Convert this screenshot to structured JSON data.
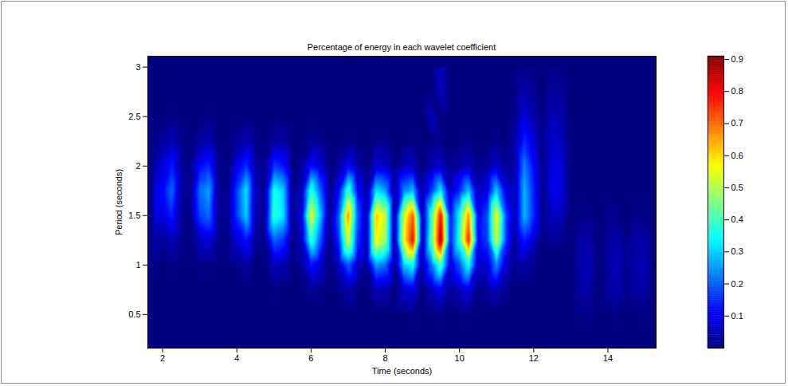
{
  "chart_data": {
    "type": "heatmap",
    "title": "Percentage of energy in each wavelet coefficient",
    "x_label": "Time (seconds)",
    "y_label": "Period (seconds)",
    "xlim": [
      1.6,
      15.3
    ],
    "ylim": [
      0.16,
      3.11
    ],
    "xticks": [
      2,
      4,
      6,
      8,
      10,
      12,
      14
    ],
    "yticks": [
      0.5,
      1,
      1.5,
      2,
      2.5,
      3
    ],
    "x": [
      1.75,
      2,
      2.25,
      2.5,
      2.75,
      3,
      3.25,
      3.5,
      3.75,
      4,
      4.25,
      4.5,
      4.75,
      5,
      5.25,
      5.5,
      5.75,
      6,
      6.25,
      6.5,
      6.75,
      7,
      7.25,
      7.5,
      7.75,
      8,
      8.25,
      8.5,
      8.75,
      9,
      9.25,
      9.5,
      9.75,
      10,
      10.25,
      10.5,
      10.75,
      11,
      11.25,
      11.5,
      11.75,
      12,
      12.25,
      12.5,
      12.75,
      13,
      13.25,
      13.5,
      13.75,
      14,
      14.25,
      14.5,
      14.75,
      15,
      15.25
    ],
    "y": [
      0.25,
      0.5,
      0.75,
      1,
      1.25,
      1.5,
      1.75,
      2,
      2.25,
      2.5,
      2.75,
      3
    ],
    "values": [
      [
        0,
        0,
        0,
        0,
        0,
        0,
        0,
        0,
        0,
        0,
        0,
        0,
        0,
        0,
        0,
        0,
        0,
        0,
        0,
        0,
        0,
        0,
        0,
        0,
        0,
        0,
        0,
        0,
        0,
        0,
        0,
        0,
        0,
        0,
        0,
        0,
        0,
        0,
        0,
        0,
        0,
        0,
        0,
        0,
        0,
        0,
        0,
        0,
        0,
        0,
        0,
        0,
        0,
        0,
        0
      ],
      [
        0,
        0,
        0,
        0,
        0,
        0,
        0,
        0,
        0,
        0,
        0,
        0,
        0,
        0,
        0,
        0,
        0,
        0,
        0,
        0,
        0,
        0,
        0,
        0,
        0,
        0,
        0,
        0,
        0.01,
        0,
        0,
        0.01,
        0,
        0,
        0.01,
        0,
        0,
        0,
        0,
        0,
        0,
        0,
        0,
        0,
        0,
        0,
        0.01,
        0.01,
        0,
        0,
        0.01,
        0,
        0,
        0.01,
        0
      ],
      [
        0,
        0,
        0,
        0,
        0,
        0,
        0,
        0,
        0,
        0,
        0,
        0,
        0,
        0.01,
        0,
        0,
        0,
        0.02,
        0.01,
        0,
        0.01,
        0.04,
        0.01,
        0,
        0.05,
        0.04,
        0,
        0.07,
        0.09,
        0,
        0.05,
        0.1,
        0.02,
        0.05,
        0.09,
        0.01,
        0.02,
        0.05,
        0.02,
        0,
        0,
        0,
        0,
        0,
        0,
        0,
        0.03,
        0.03,
        0,
        0.02,
        0.04,
        0.01,
        0.03,
        0.03,
        0
      ],
      [
        0.01,
        0,
        0.01,
        0,
        0,
        0.01,
        0.01,
        0,
        0,
        0.01,
        0.03,
        0,
        0,
        0.05,
        0.04,
        0,
        0.02,
        0.13,
        0.07,
        0,
        0.06,
        0.2,
        0.06,
        0.02,
        0.25,
        0.21,
        0.01,
        0.29,
        0.35,
        0.02,
        0.22,
        0.41,
        0.07,
        0.19,
        0.36,
        0.06,
        0.07,
        0.24,
        0.07,
        0.01,
        0.03,
        0.02,
        0,
        0,
        0,
        0,
        0.04,
        0.05,
        0,
        0.03,
        0.06,
        0.01,
        0.04,
        0.05,
        0
      ],
      [
        0.05,
        0.02,
        0.05,
        0.01,
        0,
        0.06,
        0.08,
        0.01,
        0,
        0.07,
        0.13,
        0.02,
        0.01,
        0.2,
        0.16,
        0,
        0.06,
        0.39,
        0.2,
        0.01,
        0.16,
        0.54,
        0.16,
        0.04,
        0.58,
        0.48,
        0.03,
        0.56,
        0.8,
        0.04,
        0.42,
        0.88,
        0.13,
        0.38,
        0.78,
        0.11,
        0.17,
        0.54,
        0.17,
        0.02,
        0.14,
        0.07,
        0,
        0.02,
        0.01,
        0,
        0.03,
        0.03,
        0,
        0.02,
        0.04,
        0.01,
        0.03,
        0.03,
        0
      ],
      [
        0.09,
        0.08,
        0.14,
        0.02,
        0.01,
        0.17,
        0.21,
        0.02,
        0.01,
        0.16,
        0.3,
        0.04,
        0.02,
        0.39,
        0.32,
        0.01,
        0.09,
        0.56,
        0.29,
        0.01,
        0.2,
        0.67,
        0.2,
        0.04,
        0.62,
        0.52,
        0.03,
        0.53,
        0.72,
        0.04,
        0.39,
        0.8,
        0.12,
        0.35,
        0.67,
        0.1,
        0.18,
        0.58,
        0.18,
        0.05,
        0.28,
        0.15,
        0.01,
        0.06,
        0.05,
        0,
        0.01,
        0.01,
        0,
        0.01,
        0.01,
        0,
        0.01,
        0.01,
        0
      ],
      [
        0.09,
        0.11,
        0.21,
        0.03,
        0.01,
        0.21,
        0.26,
        0.02,
        0.01,
        0.17,
        0.32,
        0.05,
        0.02,
        0.36,
        0.3,
        0.01,
        0.06,
        0.39,
        0.2,
        0.01,
        0.12,
        0.4,
        0.12,
        0.02,
        0.32,
        0.26,
        0.01,
        0.23,
        0.28,
        0.02,
        0.17,
        0.33,
        0.05,
        0.15,
        0.29,
        0.05,
        0.09,
        0.3,
        0.09,
        0.05,
        0.28,
        0.14,
        0.01,
        0.1,
        0.08,
        0,
        0,
        0,
        0,
        0,
        0,
        0,
        0,
        0,
        0
      ],
      [
        0.04,
        0.08,
        0.14,
        0.02,
        0.01,
        0.12,
        0.15,
        0.01,
        0,
        0.09,
        0.16,
        0.02,
        0.01,
        0.16,
        0.13,
        0,
        0.02,
        0.13,
        0.07,
        0,
        0.03,
        0.11,
        0.03,
        0,
        0.08,
        0.06,
        0,
        0.05,
        0.06,
        0,
        0.04,
        0.07,
        0.01,
        0.03,
        0.06,
        0.01,
        0.02,
        0.07,
        0.02,
        0.04,
        0.23,
        0.12,
        0.01,
        0.09,
        0.08,
        0,
        0,
        0,
        0,
        0,
        0,
        0,
        0,
        0,
        0
      ],
      [
        0.01,
        0.02,
        0.05,
        0.01,
        0,
        0.03,
        0.04,
        0,
        0,
        0.02,
        0.04,
        0.01,
        0,
        0.03,
        0.03,
        0,
        0,
        0.02,
        0.01,
        0,
        0,
        0.01,
        0,
        0,
        0.01,
        0.01,
        0,
        0,
        0.01,
        0,
        0,
        0.01,
        0,
        0,
        0.01,
        0,
        0,
        0.01,
        0,
        0.03,
        0.15,
        0.08,
        0.01,
        0.07,
        0.06,
        0,
        0,
        0,
        0,
        0,
        0,
        0,
        0,
        0,
        0
      ],
      [
        0,
        0,
        0.01,
        0,
        0,
        0,
        0.01,
        0,
        0,
        0,
        0,
        0,
        0,
        0,
        0,
        0,
        0,
        0,
        0,
        0,
        0,
        0,
        0,
        0,
        0,
        0,
        0,
        0,
        0,
        0,
        0.05,
        0,
        0,
        0,
        0,
        0,
        0,
        0,
        0,
        0.01,
        0.08,
        0.04,
        0,
        0.05,
        0.04,
        0,
        0,
        0,
        0,
        0,
        0,
        0,
        0,
        0,
        0
      ],
      [
        0,
        0,
        0,
        0,
        0,
        0,
        0,
        0,
        0,
        0,
        0,
        0,
        0,
        0,
        0,
        0,
        0,
        0,
        0,
        0,
        0,
        0,
        0,
        0,
        0,
        0,
        0,
        0,
        0,
        0,
        0,
        0.06,
        0,
        0,
        0,
        0,
        0,
        0,
        0,
        0.01,
        0.04,
        0.02,
        0,
        0.02,
        0.02,
        0,
        0,
        0,
        0,
        0,
        0,
        0,
        0,
        0,
        0
      ],
      [
        0,
        0,
        0,
        0,
        0,
        0,
        0,
        0,
        0,
        0,
        0,
        0,
        0,
        0,
        0,
        0,
        0,
        0,
        0,
        0,
        0,
        0,
        0,
        0,
        0,
        0,
        0,
        0,
        0,
        0,
        0,
        0.06,
        0,
        0,
        0,
        0,
        0,
        0,
        0,
        0,
        0.01,
        0.01,
        0,
        0.01,
        0.01,
        0,
        0,
        0,
        0,
        0,
        0,
        0,
        0,
        0,
        0
      ]
    ],
    "colorbar": {
      "lim": [
        0,
        0.91
      ],
      "ticks": [
        0.1,
        0.2,
        0.3,
        0.4,
        0.5,
        0.6,
        0.7,
        0.8,
        0.9
      ]
    }
  }
}
